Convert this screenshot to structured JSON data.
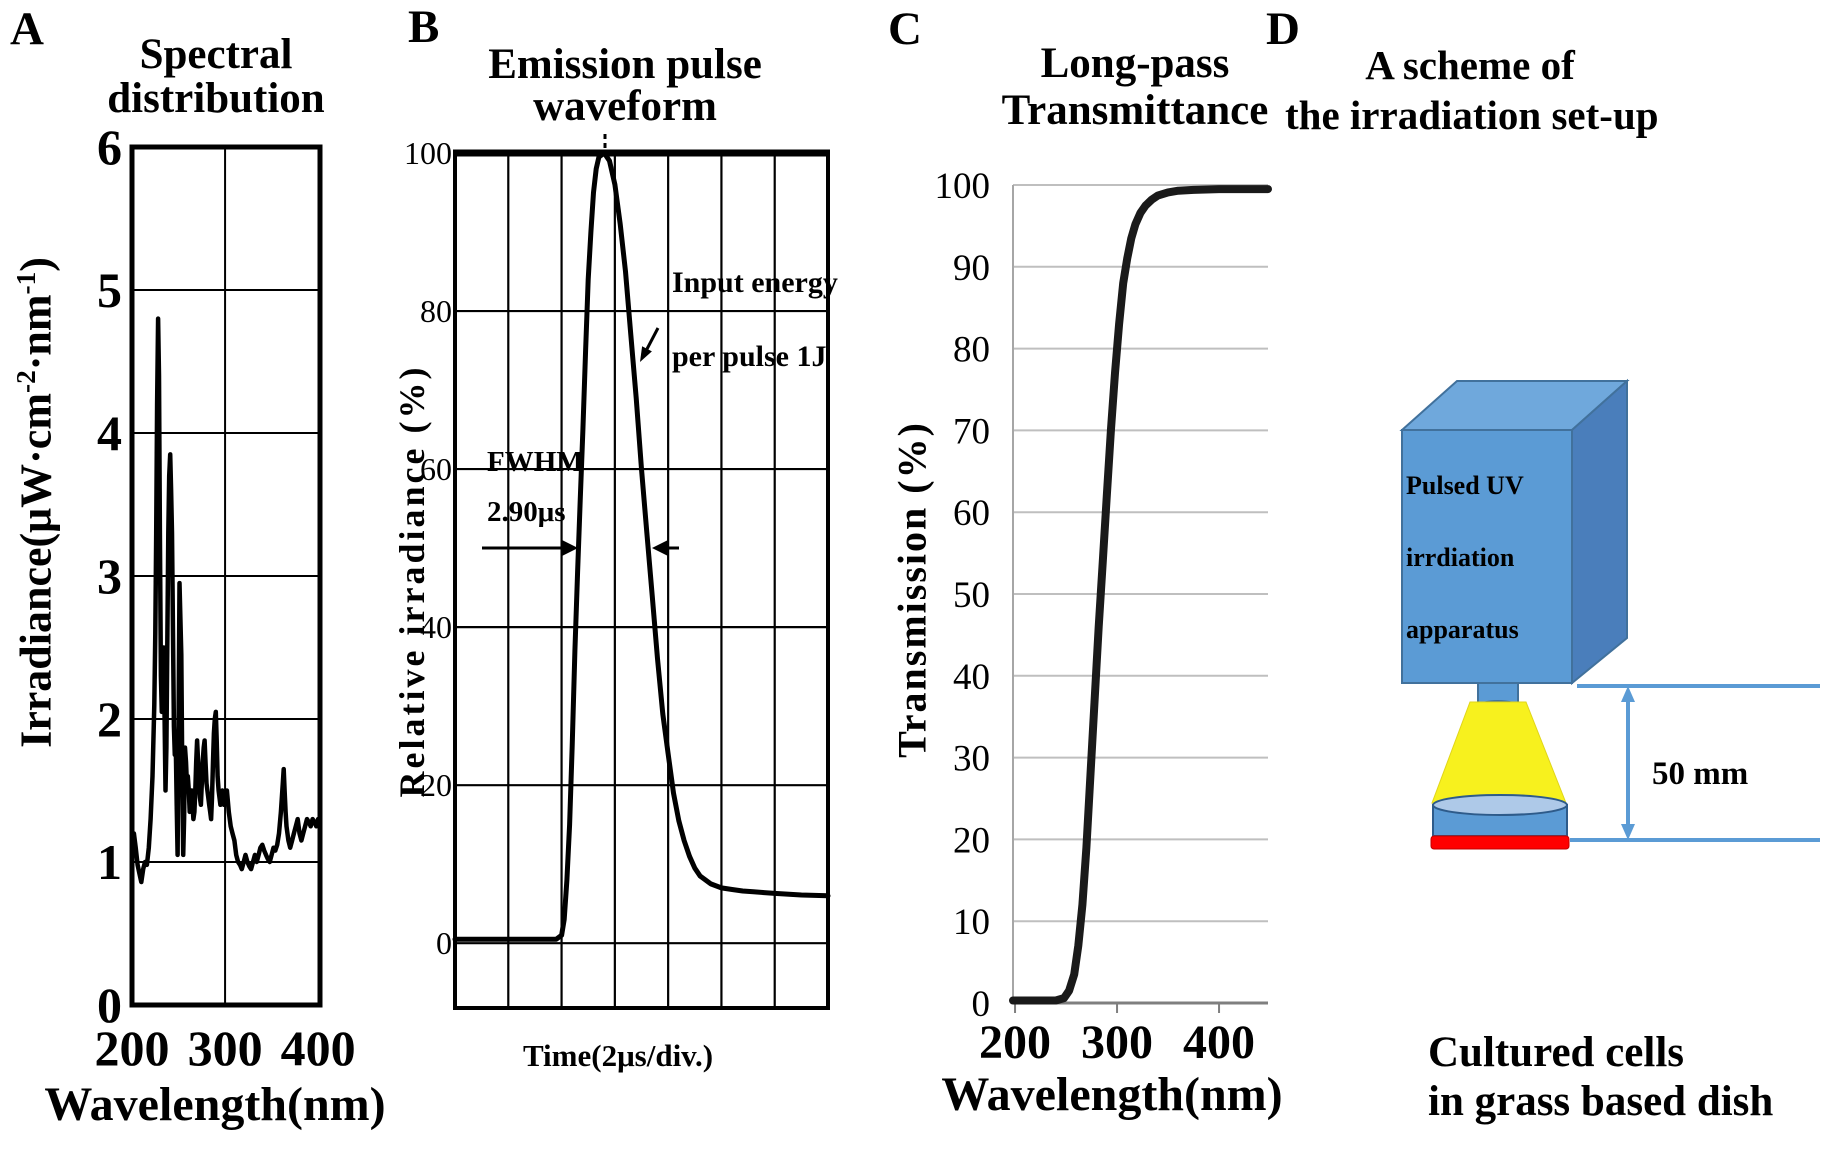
{
  "panel_a": {
    "letter": "A",
    "title_lines": [
      "Spectral",
      "distribution"
    ],
    "ylabel_parts": {
      "p1": "Irradiance(μW·cm",
      "sup1": "-2",
      "p2": "·nm",
      "sup2": "-1",
      "p3": ")"
    }
  },
  "panel_b": {
    "letter": "B",
    "title_lines": [
      "Emission pulse",
      "waveform"
    ],
    "ylabel": "Relative irradiance (%)",
    "annotations": {
      "fwhm": "FWHM",
      "fwhm_value": "2.90μs",
      "energy1": "Input energy",
      "energy2": "per pulse 1J"
    }
  },
  "panel_c": {
    "letter": "C",
    "title_lines": [
      "Long-pass",
      "Transmittance"
    ],
    "ylabel": "Transmission (%)"
  },
  "panel_d": {
    "letter": "D",
    "title_lines": [
      "A scheme of",
      "the irradiation set-up"
    ],
    "apparatus_lines": [
      "Pulsed UV",
      "irrdiation",
      "apparatus"
    ],
    "distance_label": "50 mm",
    "caption_lines": [
      "Cultured cells",
      "in grass based dish"
    ],
    "colors": {
      "box_front": "#5B9BD5",
      "box_top": "#6FA8DC",
      "box_side": "#4A7EBB",
      "outline": "#41719C",
      "beam": "#F7F11E",
      "dish_top": "#AEC9E8",
      "dish_body": "#5B9BD5",
      "cells": "#FF0000",
      "line": "#5B9BD5"
    }
  },
  "chart_data": [
    {
      "id": "spectral",
      "type": "line",
      "title": "Spectral distribution",
      "xlabel": "Wavelength(nm)",
      "ylabel": "Irradiance(μW·cm⁻²·nm⁻¹)",
      "xlim": [
        200,
        402
      ],
      "ylim": [
        0,
        6
      ],
      "xticks": [
        200,
        300,
        400
      ],
      "yticks": [
        6,
        5,
        4,
        3,
        2,
        1,
        0
      ],
      "x_gridlines": [
        300
      ],
      "y_gridlines": [
        1,
        2,
        3,
        4,
        5
      ],
      "grid": true,
      "legend": false,
      "series": [
        {
          "name": "lamp-spectrum",
          "points": [
            [
              200,
              1.15
            ],
            [
              202,
              1.2
            ],
            [
              204,
              1.1
            ],
            [
              206,
              0.98
            ],
            [
              208,
              0.92
            ],
            [
              210,
              0.86
            ],
            [
              212,
              0.95
            ],
            [
              214,
              1.0
            ],
            [
              216,
              0.98
            ],
            [
              218,
              1.1
            ],
            [
              220,
              1.3
            ],
            [
              222,
              1.6
            ],
            [
              224,
              2.1
            ],
            [
              225,
              2.6
            ],
            [
              226,
              3.3
            ],
            [
              227,
              4.2
            ],
            [
              228,
              4.8
            ],
            [
              229,
              4.4
            ],
            [
              230,
              3.3
            ],
            [
              231,
              2.3
            ],
            [
              232,
              2.05
            ],
            [
              233,
              2.3
            ],
            [
              234,
              2.5
            ],
            [
              235,
              2.0
            ],
            [
              236,
              1.5
            ],
            [
              237,
              1.8
            ],
            [
              238,
              2.6
            ],
            [
              239,
              3.3
            ],
            [
              240,
              3.7
            ],
            [
              241,
              3.85
            ],
            [
              242,
              3.6
            ],
            [
              243,
              3.3
            ],
            [
              244,
              2.6
            ],
            [
              245,
              1.95
            ],
            [
              246,
              1.75
            ],
            [
              247,
              1.85
            ],
            [
              248,
              1.4
            ],
            [
              249,
              1.05
            ],
            [
              250,
              1.9
            ],
            [
              251,
              2.95
            ],
            [
              252,
              2.7
            ],
            [
              253,
              2.45
            ],
            [
              254,
              1.6
            ],
            [
              255,
              1.05
            ],
            [
              256,
              1.3
            ],
            [
              257,
              1.8
            ],
            [
              258,
              1.7
            ],
            [
              259,
              1.55
            ],
            [
              260,
              1.6
            ],
            [
              261,
              1.5
            ],
            [
              262,
              1.35
            ],
            [
              263,
              1.4
            ],
            [
              264,
              1.5
            ],
            [
              265,
              1.4
            ],
            [
              266,
              1.3
            ],
            [
              267,
              1.35
            ],
            [
              268,
              1.5
            ],
            [
              269,
              1.7
            ],
            [
              270,
              1.85
            ],
            [
              271,
              1.7
            ],
            [
              272,
              1.55
            ],
            [
              273,
              1.45
            ],
            [
              274,
              1.4
            ],
            [
              275,
              1.55
            ],
            [
              276,
              1.7
            ],
            [
              277,
              1.8
            ],
            [
              278,
              1.85
            ],
            [
              279,
              1.7
            ],
            [
              280,
              1.55
            ],
            [
              281,
              1.5
            ],
            [
              282,
              1.45
            ],
            [
              283,
              1.4
            ],
            [
              284,
              1.35
            ],
            [
              285,
              1.3
            ],
            [
              286,
              1.45
            ],
            [
              287,
              1.7
            ],
            [
              288,
              1.9
            ],
            [
              289,
              2.0
            ],
            [
              290,
              2.05
            ],
            [
              291,
              1.85
            ],
            [
              292,
              1.6
            ],
            [
              293,
              1.5
            ],
            [
              294,
              1.45
            ],
            [
              295,
              1.4
            ],
            [
              296,
              1.45
            ],
            [
              297,
              1.5
            ],
            [
              298,
              1.45
            ],
            [
              299,
              1.4
            ],
            [
              300,
              1.45
            ],
            [
              302,
              1.5
            ],
            [
              304,
              1.35
            ],
            [
              306,
              1.25
            ],
            [
              308,
              1.2
            ],
            [
              310,
              1.15
            ],
            [
              312,
              1.05
            ],
            [
              314,
              1.0
            ],
            [
              316,
              0.98
            ],
            [
              318,
              0.95
            ],
            [
              320,
              1.0
            ],
            [
              322,
              1.05
            ],
            [
              324,
              1.0
            ],
            [
              326,
              0.97
            ],
            [
              328,
              0.95
            ],
            [
              330,
              1.0
            ],
            [
              332,
              1.05
            ],
            [
              334,
              1.0
            ],
            [
              336,
              1.05
            ],
            [
              338,
              1.1
            ],
            [
              340,
              1.12
            ],
            [
              342,
              1.08
            ],
            [
              344,
              1.05
            ],
            [
              346,
              1.02
            ],
            [
              348,
              1.0
            ],
            [
              350,
              1.05
            ],
            [
              352,
              1.1
            ],
            [
              354,
              1.08
            ],
            [
              356,
              1.12
            ],
            [
              358,
              1.2
            ],
            [
              360,
              1.35
            ],
            [
              362,
              1.55
            ],
            [
              363,
              1.65
            ],
            [
              364,
              1.5
            ],
            [
              365,
              1.35
            ],
            [
              366,
              1.25
            ],
            [
              368,
              1.15
            ],
            [
              370,
              1.1
            ],
            [
              372,
              1.15
            ],
            [
              374,
              1.2
            ],
            [
              376,
              1.25
            ],
            [
              378,
              1.3
            ],
            [
              380,
              1.2
            ],
            [
              382,
              1.15
            ],
            [
              384,
              1.2
            ],
            [
              386,
              1.25
            ],
            [
              388,
              1.3
            ],
            [
              390,
              1.28
            ],
            [
              392,
              1.25
            ],
            [
              394,
              1.3
            ],
            [
              396,
              1.28
            ],
            [
              398,
              1.25
            ],
            [
              400,
              1.3
            ]
          ]
        }
      ]
    },
    {
      "id": "pulse",
      "type": "line",
      "title": "Emission pulse waveform",
      "xlabel": "Time(2μs/div.)",
      "ylabel": "Relative irradiance (%)",
      "x_unit": "divisions (2μs per division)",
      "xlim": [
        0,
        7
      ],
      "ylim": [
        -8.2,
        100
      ],
      "yticks": [
        100,
        80,
        60,
        40,
        20,
        0
      ],
      "x_gridlines": [
        1,
        2,
        3,
        4,
        5,
        6
      ],
      "y_gridlines": [
        0,
        20,
        40,
        60,
        80
      ],
      "fwhm_us": 2.9,
      "input_energy_per_pulse_J": 1,
      "grid": true,
      "legend": false,
      "series": [
        {
          "name": "pulse-waveform",
          "points": [
            [
              0,
              0.5
            ],
            [
              1,
              0.5
            ],
            [
              1.5,
              0.5
            ],
            [
              1.9,
              0.5
            ],
            [
              2.0,
              1
            ],
            [
              2.05,
              3
            ],
            [
              2.1,
              8
            ],
            [
              2.15,
              15
            ],
            [
              2.2,
              25
            ],
            [
              2.25,
              37
            ],
            [
              2.3,
              47
            ],
            [
              2.35,
              56
            ],
            [
              2.4,
              65
            ],
            [
              2.45,
              75
            ],
            [
              2.5,
              84
            ],
            [
              2.55,
              90
            ],
            [
              2.6,
              95
            ],
            [
              2.65,
              98
            ],
            [
              2.7,
              99.5
            ],
            [
              2.8,
              100
            ],
            [
              2.9,
              99
            ],
            [
              3.0,
              96
            ],
            [
              3.1,
              91
            ],
            [
              3.2,
              85
            ],
            [
              3.3,
              77
            ],
            [
              3.4,
              69
            ],
            [
              3.5,
              60
            ],
            [
              3.6,
              52
            ],
            [
              3.7,
              44
            ],
            [
              3.8,
              36
            ],
            [
              3.9,
              29
            ],
            [
              4.0,
              24
            ],
            [
              4.1,
              19
            ],
            [
              4.2,
              15.5
            ],
            [
              4.3,
              13
            ],
            [
              4.4,
              11
            ],
            [
              4.5,
              9.5
            ],
            [
              4.6,
              8.5
            ],
            [
              4.8,
              7.5
            ],
            [
              5.0,
              7
            ],
            [
              5.2,
              6.8
            ],
            [
              5.4,
              6.6
            ],
            [
              5.6,
              6.5
            ],
            [
              5.8,
              6.4
            ],
            [
              6.0,
              6.3
            ],
            [
              6.5,
              6.1
            ],
            [
              7.0,
              6.0
            ]
          ]
        }
      ]
    },
    {
      "id": "transmittance",
      "type": "line",
      "title": "Long-pass Transmittance",
      "xlabel": "Wavelength(nm)",
      "ylabel": "Transmission (%)",
      "xlim": [
        198,
        448
      ],
      "ylim": [
        0,
        100
      ],
      "xticks": [
        200,
        300,
        400
      ],
      "yticks": [
        100,
        90,
        80,
        70,
        60,
        50,
        40,
        30,
        20,
        10,
        0
      ],
      "y_gridlines": [
        10,
        20,
        30,
        40,
        50,
        60,
        70,
        80,
        90,
        100
      ],
      "grid": true,
      "legend": false,
      "series": [
        {
          "name": "long-pass-filter",
          "points": [
            [
              198,
              0.3
            ],
            [
              240,
              0.3
            ],
            [
              248,
              0.6
            ],
            [
              253,
              1.5
            ],
            [
              258,
              3.5
            ],
            [
              262,
              7
            ],
            [
              266,
              12
            ],
            [
              270,
              19
            ],
            [
              274,
              28
            ],
            [
              278,
              37
            ],
            [
              282,
              46
            ],
            [
              286,
              54
            ],
            [
              290,
              62
            ],
            [
              294,
              70
            ],
            [
              298,
              77
            ],
            [
              302,
              83
            ],
            [
              306,
              88
            ],
            [
              310,
              91
            ],
            [
              314,
              93.5
            ],
            [
              318,
              95.2
            ],
            [
              323,
              96.6
            ],
            [
              328,
              97.5
            ],
            [
              334,
              98.2
            ],
            [
              340,
              98.7
            ],
            [
              350,
              99.1
            ],
            [
              360,
              99.3
            ],
            [
              375,
              99.4
            ],
            [
              400,
              99.5
            ],
            [
              425,
              99.5
            ],
            [
              448,
              99.5
            ]
          ]
        }
      ]
    }
  ]
}
